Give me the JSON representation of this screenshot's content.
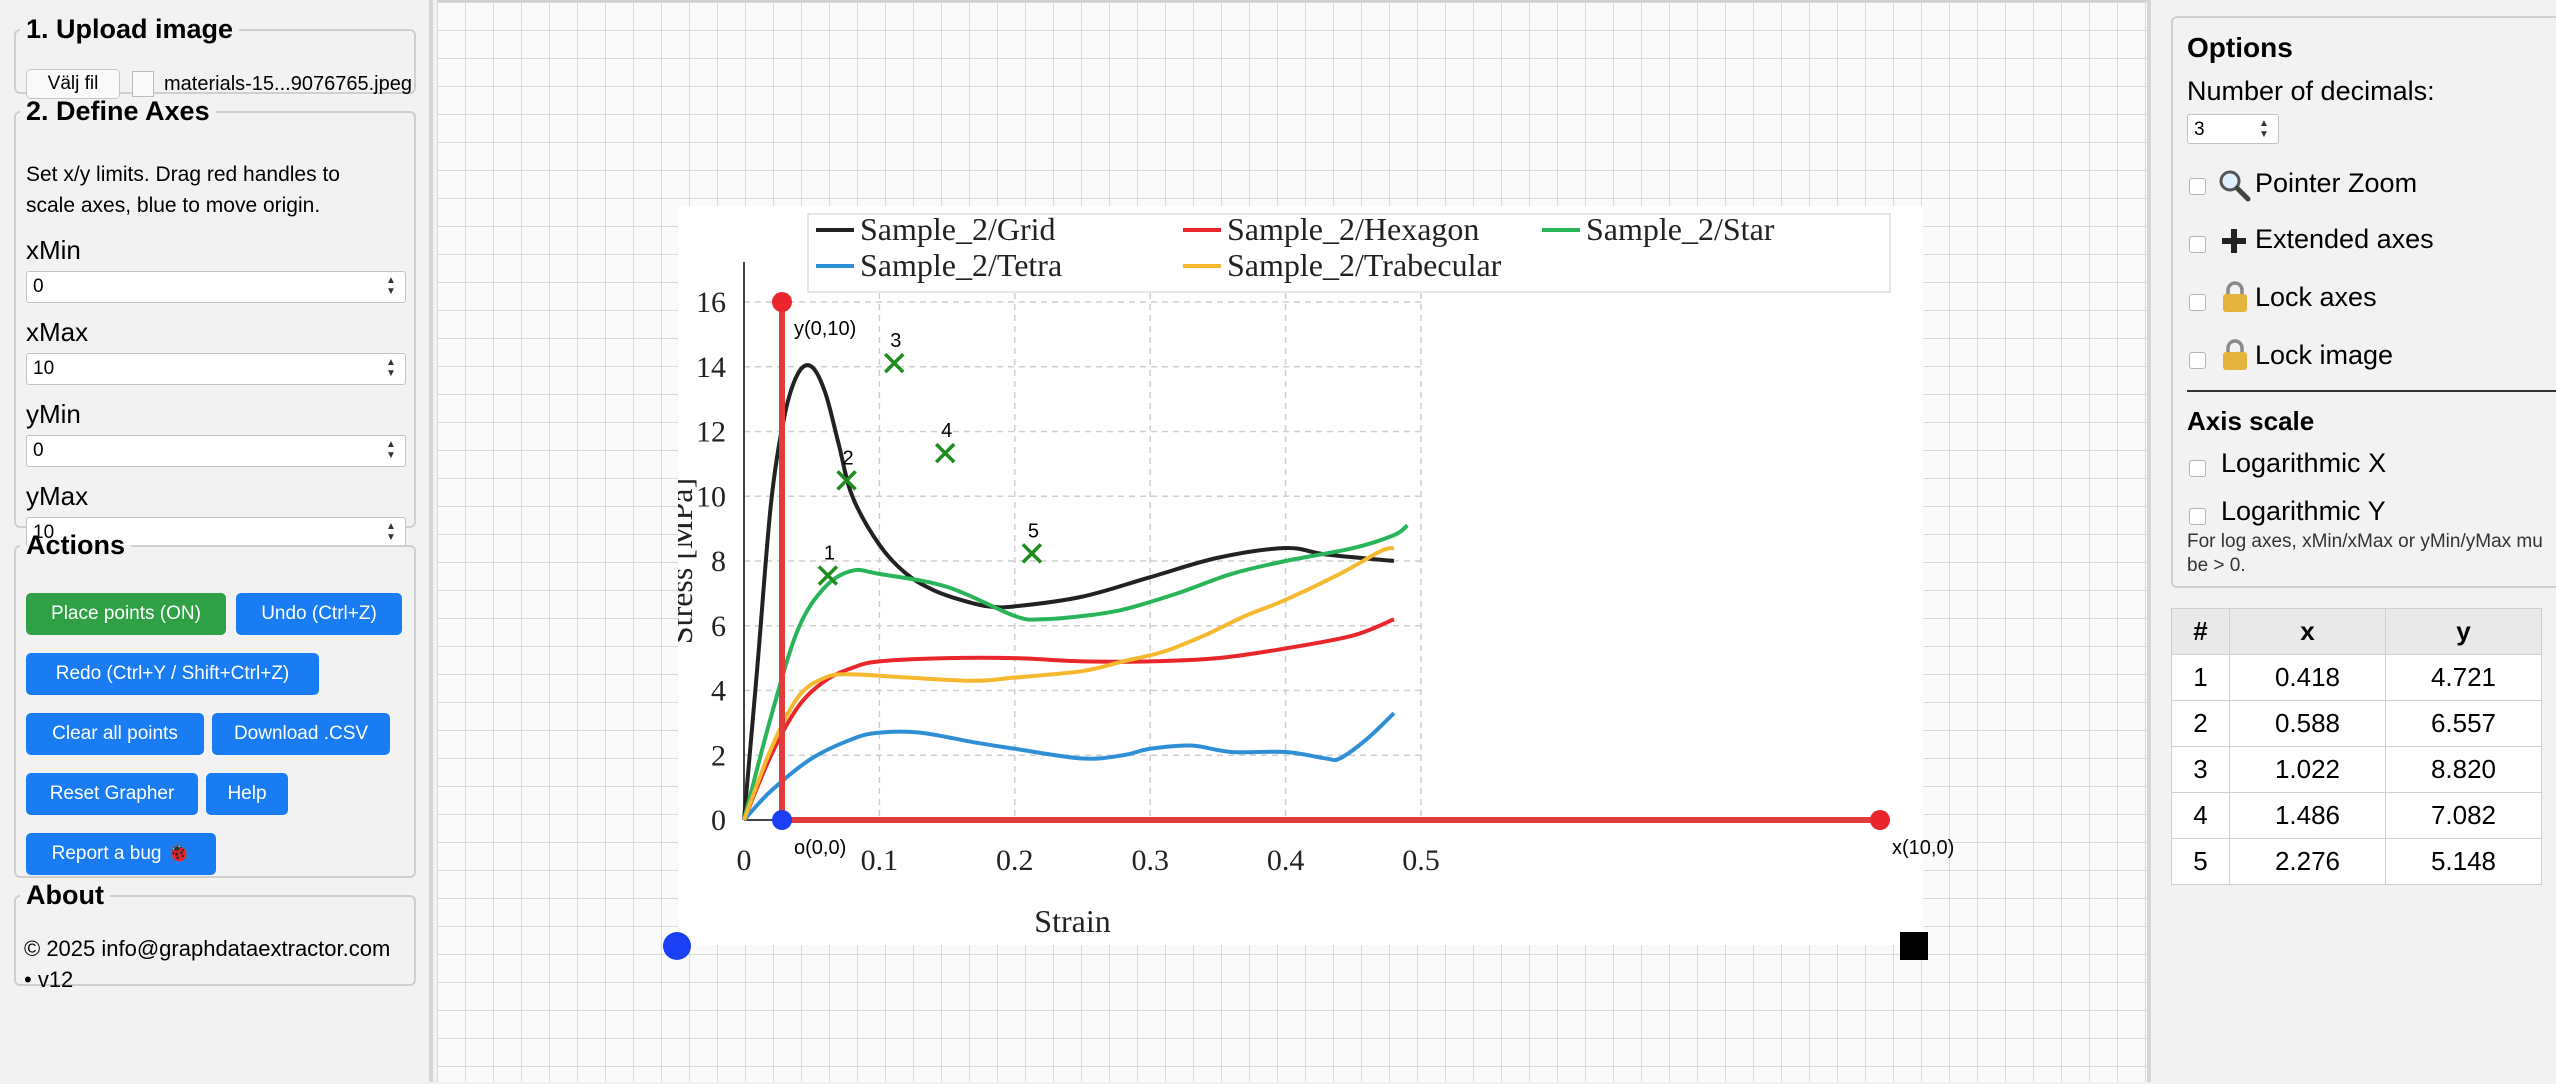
{
  "upload": {
    "legend": "1. Upload image",
    "button_label": "Välj fil",
    "file_name": "materials-15...9076765.jpeg"
  },
  "axes": {
    "legend": "2. Define Axes",
    "help_line1": "Set x/y limits. Drag red handles to",
    "help_line2": "scale axes, blue to move origin.",
    "xmin_label": "xMin",
    "xmin_value": "0",
    "xmax_label": "xMax",
    "xmax_value": "10",
    "ymin_label": "yMin",
    "ymin_value": "0",
    "ymax_label": "yMax",
    "ymax_value": "10"
  },
  "actions": {
    "legend": "Actions",
    "place_points": "Place points (ON)",
    "undo": "Undo (Ctrl+Z)",
    "redo": "Redo (Ctrl+Y / Shift+Ctrl+Z)",
    "clear": "Clear all points",
    "download": "Download .CSV",
    "reset": "Reset Grapher",
    "help": "Help",
    "report": "Report a bug 🐞"
  },
  "about": {
    "legend": "About",
    "line1": "© 2025 info@graphdataextractor.com",
    "line2": "• v12"
  },
  "options": {
    "title": "Options",
    "decimals_label": "Number of decimals:",
    "decimals_value": "3",
    "pointer_zoom": "Pointer Zoom",
    "extended_axes": "Extended axes",
    "lock_axes": "Lock axes",
    "lock_image": "Lock image",
    "axis_scale_title": "Axis scale",
    "log_x": "Logarithmic X",
    "log_y": "Logarithmic Y",
    "log_note_line1": "For log axes, xMin/xMax or yMin/yMax mu",
    "log_note_line2": "be > 0."
  },
  "table": {
    "headers": [
      "#",
      "x",
      "y"
    ],
    "rows": [
      [
        "1",
        "0.418",
        "4.721"
      ],
      [
        "2",
        "0.588",
        "6.557"
      ],
      [
        "3",
        "1.022",
        "8.820"
      ],
      [
        "4",
        "1.486",
        "7.082"
      ],
      [
        "5",
        "2.276",
        "5.148"
      ]
    ]
  },
  "overlay": {
    "y_handle_label": "y(0,10)",
    "origin_label": "o(0,0)",
    "x_handle_label": "x(10,0)",
    "handle_color_axis": "#e8262b",
    "handle_color_origin": "#1a3ff5",
    "axis_line_color": "#e23b3b",
    "marker_color": "#1e8c1e",
    "marker_labels": [
      "1",
      "2",
      "3",
      "4",
      "5"
    ]
  },
  "chart_data": {
    "type": "line",
    "title": "",
    "xlabel": "Strain",
    "ylabel": "Stress [MPa]",
    "xlim": [
      0,
      0.5
    ],
    "ylim": [
      0,
      16
    ],
    "x_ticks": [
      "0",
      "0.1",
      "0.2",
      "0.3",
      "0.4",
      "0.5"
    ],
    "y_ticks": [
      "0",
      "2",
      "4",
      "6",
      "8",
      "10",
      "12",
      "14",
      "16"
    ],
    "grid": true,
    "legend_position": "top",
    "series": [
      {
        "name": "Sample_2/Grid",
        "color": "#222222",
        "points": [
          [
            0,
            0
          ],
          [
            0.01,
            4.8
          ],
          [
            0.02,
            9.8
          ],
          [
            0.03,
            12.5
          ],
          [
            0.04,
            13.8
          ],
          [
            0.05,
            14.0
          ],
          [
            0.06,
            13.2
          ],
          [
            0.07,
            11.6
          ],
          [
            0.08,
            10.0
          ],
          [
            0.1,
            8.5
          ],
          [
            0.12,
            7.6
          ],
          [
            0.14,
            7.1
          ],
          [
            0.16,
            6.8
          ],
          [
            0.18,
            6.6
          ],
          [
            0.2,
            6.6
          ],
          [
            0.25,
            6.9
          ],
          [
            0.3,
            7.5
          ],
          [
            0.35,
            8.1
          ],
          [
            0.4,
            8.4
          ],
          [
            0.43,
            8.2
          ],
          [
            0.48,
            8.0
          ]
        ]
      },
      {
        "name": "Sample_2/Hexagon",
        "color": "#e8262b",
        "points": [
          [
            0,
            0
          ],
          [
            0.02,
            2.0
          ],
          [
            0.04,
            3.5
          ],
          [
            0.06,
            4.3
          ],
          [
            0.08,
            4.7
          ],
          [
            0.1,
            4.9
          ],
          [
            0.15,
            5.0
          ],
          [
            0.2,
            5.0
          ],
          [
            0.25,
            4.9
          ],
          [
            0.3,
            4.9
          ],
          [
            0.35,
            5.0
          ],
          [
            0.4,
            5.3
          ],
          [
            0.45,
            5.7
          ],
          [
            0.48,
            6.2
          ]
        ]
      },
      {
        "name": "Sample_2/Star",
        "color": "#2ab45a",
        "points": [
          [
            0,
            0
          ],
          [
            0.02,
            3.2
          ],
          [
            0.04,
            5.9
          ],
          [
            0.06,
            7.2
          ],
          [
            0.08,
            7.7
          ],
          [
            0.1,
            7.6
          ],
          [
            0.15,
            7.2
          ],
          [
            0.2,
            6.3
          ],
          [
            0.22,
            6.2
          ],
          [
            0.25,
            6.3
          ],
          [
            0.28,
            6.5
          ],
          [
            0.32,
            7.0
          ],
          [
            0.36,
            7.6
          ],
          [
            0.4,
            8.0
          ],
          [
            0.45,
            8.4
          ],
          [
            0.48,
            8.8
          ],
          [
            0.49,
            9.1
          ]
        ]
      },
      {
        "name": "Sample_2/Tetra",
        "color": "#2f8fd6",
        "points": [
          [
            0,
            0
          ],
          [
            0.02,
            0.9
          ],
          [
            0.05,
            1.9
          ],
          [
            0.08,
            2.5
          ],
          [
            0.1,
            2.7
          ],
          [
            0.13,
            2.7
          ],
          [
            0.17,
            2.4
          ],
          [
            0.2,
            2.2
          ],
          [
            0.25,
            1.9
          ],
          [
            0.28,
            2.0
          ],
          [
            0.3,
            2.2
          ],
          [
            0.33,
            2.3
          ],
          [
            0.36,
            2.1
          ],
          [
            0.4,
            2.1
          ],
          [
            0.43,
            1.9
          ],
          [
            0.44,
            1.9
          ],
          [
            0.46,
            2.5
          ],
          [
            0.48,
            3.3
          ]
        ]
      },
      {
        "name": "Sample_2/Trabecular",
        "color": "#f5b82e",
        "points": [
          [
            0,
            0
          ],
          [
            0.02,
            2.2
          ],
          [
            0.04,
            3.8
          ],
          [
            0.06,
            4.4
          ],
          [
            0.08,
            4.5
          ],
          [
            0.12,
            4.4
          ],
          [
            0.17,
            4.3
          ],
          [
            0.2,
            4.4
          ],
          [
            0.25,
            4.6
          ],
          [
            0.28,
            4.9
          ],
          [
            0.31,
            5.2
          ],
          [
            0.34,
            5.7
          ],
          [
            0.37,
            6.3
          ],
          [
            0.4,
            6.8
          ],
          [
            0.44,
            7.6
          ],
          [
            0.47,
            8.3
          ],
          [
            0.48,
            8.4
          ]
        ]
      }
    ]
  }
}
